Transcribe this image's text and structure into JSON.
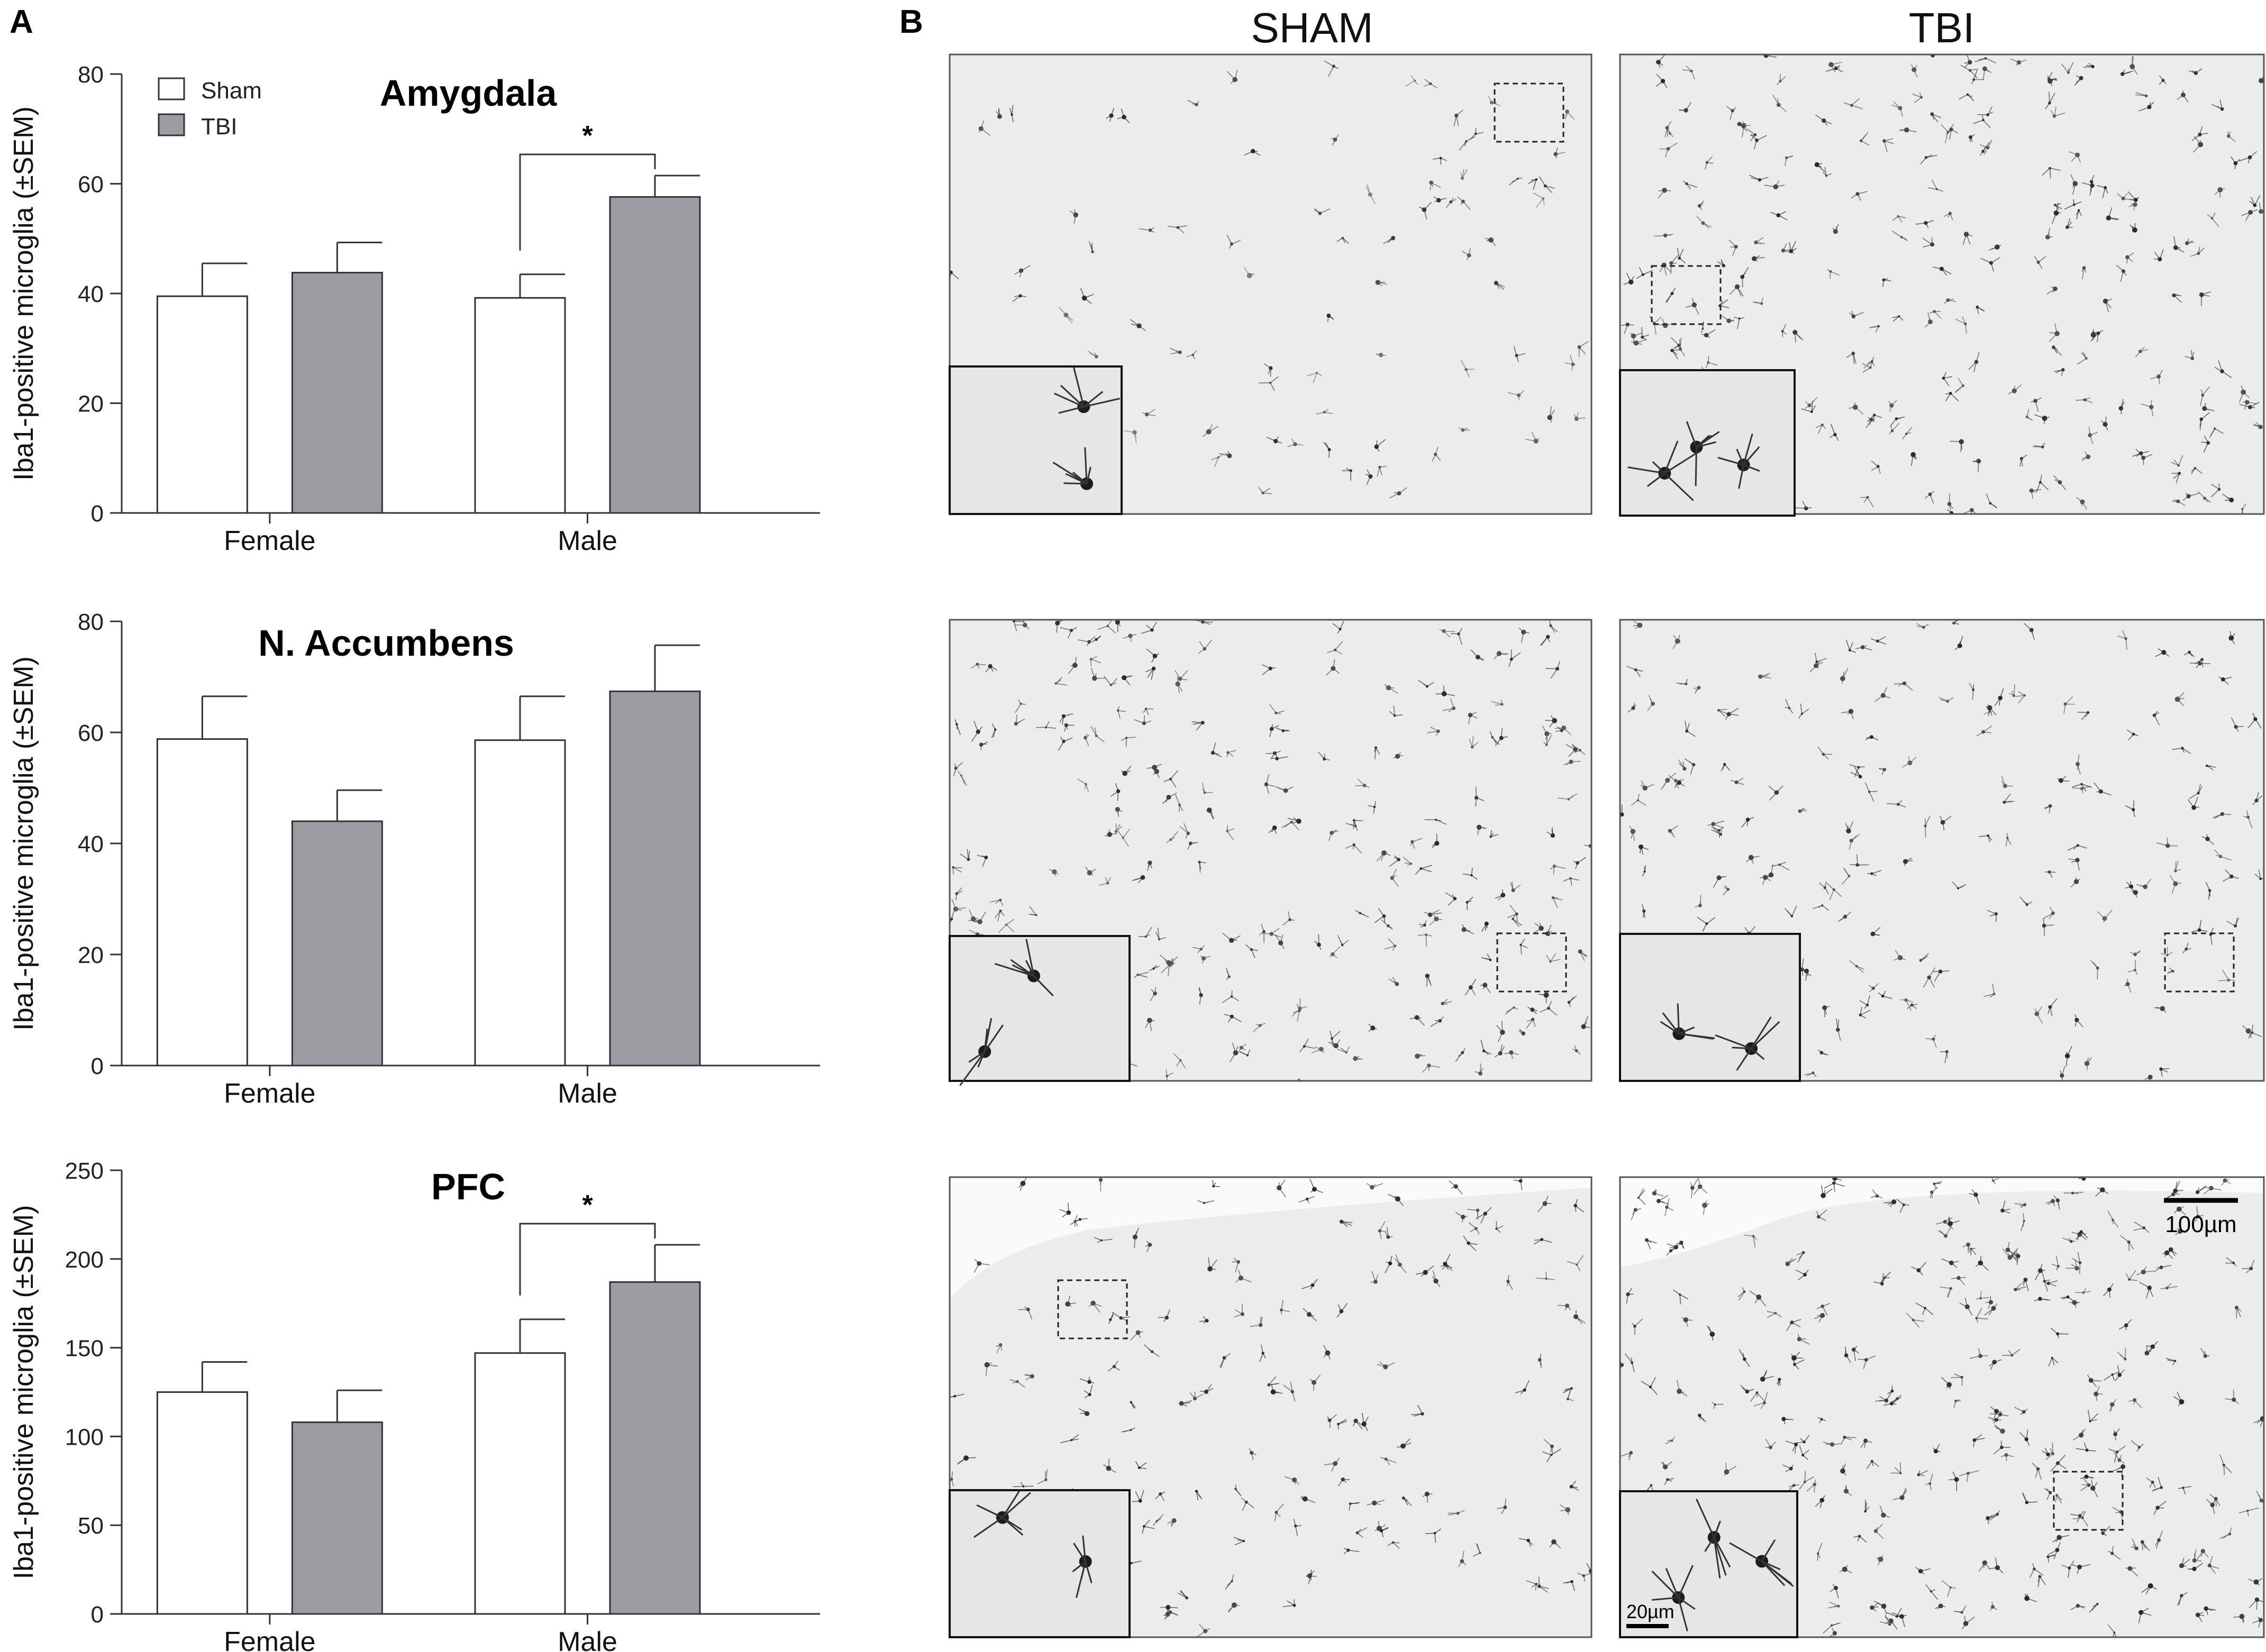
{
  "figure": {
    "panel_a_label": "A",
    "panel_b_label": "B",
    "legend": {
      "placement": "top-left",
      "items": [
        {
          "label": "Sham",
          "color": "#ffffff"
        },
        {
          "label": "TBI",
          "color": "#9d9ca2"
        }
      ]
    },
    "colors": {
      "sham": "#ffffff",
      "tbi": "#9d9ca2",
      "stroke": "#333333"
    }
  },
  "chart_data": [
    {
      "type": "bar",
      "title": "Amygdala",
      "ylabel": "Iba1-positive microglia (±SEM)",
      "xlabel": "",
      "categories": [
        "Female",
        "Male"
      ],
      "ylim": [
        0,
        80
      ],
      "yticks": [
        "0",
        "20",
        "40",
        "60",
        "80"
      ],
      "series": [
        {
          "name": "Sham",
          "values": [
            39.5,
            39.2
          ],
          "errors": [
            6.0,
            4.3
          ]
        },
        {
          "name": "TBI",
          "values": [
            43.8,
            57.6
          ],
          "errors": [
            5.5,
            3.9
          ]
        }
      ],
      "significance": [
        {
          "category": "Male",
          "label": "*"
        }
      ],
      "grid": false
    },
    {
      "type": "bar",
      "title": "N. Accumbens",
      "ylabel": "Iba1-positive microglia (±SEM)",
      "xlabel": "",
      "categories": [
        "Female",
        "Male"
      ],
      "ylim": [
        0,
        80
      ],
      "yticks": [
        "0",
        "20",
        "40",
        "60",
        "80"
      ],
      "series": [
        {
          "name": "Sham",
          "values": [
            58.8,
            58.6
          ],
          "errors": [
            7.7,
            7.9
          ]
        },
        {
          "name": "TBI",
          "values": [
            44.0,
            67.4
          ],
          "errors": [
            5.6,
            8.3
          ]
        }
      ],
      "significance": [],
      "grid": false
    },
    {
      "type": "bar",
      "title": "PFC",
      "ylabel": "Iba1-positive microglia (±SEM)",
      "xlabel": "",
      "categories": [
        "Female",
        "Male"
      ],
      "ylim": [
        0,
        250
      ],
      "yticks": [
        "0",
        "50",
        "100",
        "150",
        "200",
        "250"
      ],
      "series": [
        {
          "name": "Sham",
          "values": [
            125,
            147
          ],
          "errors": [
            17,
            19
          ]
        },
        {
          "name": "TBI",
          "values": [
            108,
            187
          ],
          "errors": [
            18,
            21
          ]
        }
      ],
      "significance": [
        {
          "category": "Male",
          "label": "*"
        }
      ],
      "grid": false
    }
  ],
  "micrographs": {
    "columns": [
      "SHAM",
      "TBI"
    ],
    "scale_bar_large": "100µm",
    "scale_bar_small": "20µm",
    "tiles": [
      {
        "row": 1,
        "group": "SHAM",
        "density": 90,
        "dark": 0.3,
        "inset_cells": 2
      },
      {
        "row": 1,
        "group": "TBI",
        "density": 260,
        "dark": 0.55,
        "inset_cells": 3
      },
      {
        "row": 2,
        "group": "SHAM",
        "density": 260,
        "dark": 0.5,
        "inset_cells": 2
      },
      {
        "row": 2,
        "group": "TBI",
        "density": 200,
        "dark": 0.5,
        "inset_cells": 2
      },
      {
        "row": 3,
        "group": "SHAM",
        "density": 180,
        "dark": 0.6,
        "inset_cells": 2
      },
      {
        "row": 3,
        "group": "TBI",
        "density": 300,
        "dark": 0.6,
        "inset_cells": 3
      }
    ]
  }
}
